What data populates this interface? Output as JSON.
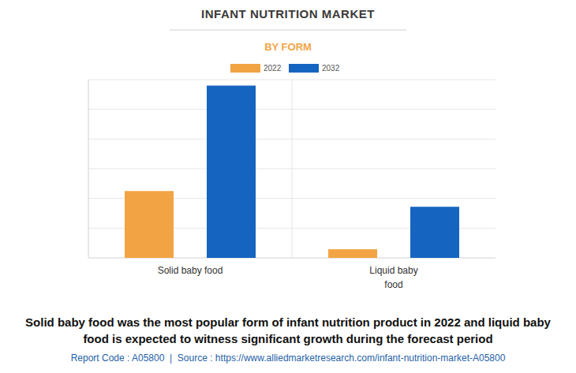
{
  "chart_data": {
    "type": "bar",
    "title": "INFANT NUTRITION MARKET",
    "subtitle": "BY FORM",
    "categories": [
      "Solid baby food",
      "Liquid baby food"
    ],
    "series": [
      {
        "name": "2022",
        "color": "#f2a444",
        "values": [
          2.25,
          0.29
        ]
      },
      {
        "name": "2032",
        "color": "#1565c0",
        "values": [
          5.8,
          1.72
        ]
      }
    ],
    "ylim": [
      0,
      6
    ],
    "yticks": [
      0,
      1,
      2,
      3,
      4,
      5,
      6
    ],
    "grid": true,
    "tick_labels": false,
    "caption": "Solid baby food was the most popular form of infant nutrition product in 2022 and liquid baby food is expected to witness significant growth during the forecast period",
    "source": "Report Code : A05800  |  Source : https://www.alliedmarketresearch.com/infant-nutrition-market-A05800"
  }
}
